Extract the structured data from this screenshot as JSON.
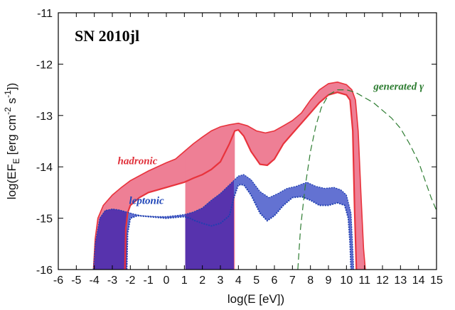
{
  "chart_data": {
    "type": "area",
    "title": "SN 2010jl",
    "xlabel": "log(E [eV])",
    "ylabel_main": "log(EF",
    "ylabel_sub": "E",
    "ylabel_rest": " [erg cm",
    "ylabel_exp1": "-2",
    "ylabel_mid": " s",
    "ylabel_exp2": "-1",
    "ylabel_end": "])",
    "xlim": [
      -6,
      15
    ],
    "ylim": [
      -16,
      -11
    ],
    "x_ticks": [
      -6,
      -5,
      -4,
      -3,
      -2,
      -1,
      0,
      1,
      2,
      3,
      4,
      5,
      6,
      7,
      8,
      9,
      10,
      11,
      12,
      13,
      14,
      15
    ],
    "y_ticks": [
      -16,
      -15,
      -14,
      -13,
      -12,
      -11
    ],
    "colors": {
      "hadronic_fill": "#ee7f95",
      "hadronic_line": "#e8333c",
      "leptonic_fill": "#6372d2",
      "leptonic_fill_dark": "#5733ad",
      "leptonic_line": "#1f3fb0",
      "generated_line": "#2e7d32",
      "hadronic_label": "#e0303a",
      "leptonic_label": "#1f45b8",
      "generated_label": "#2e7d32"
    },
    "series": [
      {
        "name": "hadronic",
        "upper": [
          [
            -4.05,
            -16
          ],
          [
            -3.95,
            -15.4
          ],
          [
            -3.8,
            -15.0
          ],
          [
            -3.5,
            -14.75
          ],
          [
            -3,
            -14.55
          ],
          [
            -2.5,
            -14.4
          ],
          [
            -2,
            -14.27
          ],
          [
            -1,
            -14.08
          ],
          [
            0,
            -13.92
          ],
          [
            0.5,
            -13.85
          ],
          [
            1,
            -13.7
          ],
          [
            1.5,
            -13.55
          ],
          [
            2,
            -13.42
          ],
          [
            2.5,
            -13.3
          ],
          [
            3,
            -13.22
          ],
          [
            3.5,
            -13.18
          ],
          [
            4,
            -13.15
          ],
          [
            4.5,
            -13.2
          ],
          [
            5,
            -13.3
          ],
          [
            5.5,
            -13.34
          ],
          [
            6,
            -13.3
          ],
          [
            6.5,
            -13.2
          ],
          [
            7,
            -13.1
          ],
          [
            7.5,
            -12.95
          ],
          [
            8,
            -12.7
          ],
          [
            8.5,
            -12.5
          ],
          [
            9,
            -12.38
          ],
          [
            9.5,
            -12.35
          ],
          [
            10,
            -12.4
          ],
          [
            10.3,
            -12.5
          ],
          [
            10.5,
            -12.7
          ],
          [
            10.65,
            -13.3
          ],
          [
            10.8,
            -14.5
          ],
          [
            10.95,
            -15.6
          ],
          [
            11.05,
            -16
          ]
        ],
        "lower": [
          [
            -2.3,
            -16
          ],
          [
            -2.25,
            -15.2
          ],
          [
            -2.15,
            -14.9
          ],
          [
            -2,
            -14.75
          ],
          [
            -1.5,
            -14.6
          ],
          [
            -1,
            -14.5
          ],
          [
            0,
            -14.4
          ],
          [
            1,
            -14.3
          ],
          [
            1.5,
            -14.22
          ],
          [
            2,
            -14.15
          ],
          [
            2.5,
            -14.05
          ],
          [
            3,
            -13.9
          ],
          [
            3.5,
            -13.55
          ],
          [
            3.8,
            -13.3
          ],
          [
            4,
            -13.28
          ],
          [
            4.3,
            -13.4
          ],
          [
            4.7,
            -13.7
          ],
          [
            5.2,
            -13.95
          ],
          [
            5.6,
            -13.97
          ],
          [
            6,
            -13.85
          ],
          [
            6.5,
            -13.55
          ],
          [
            7,
            -13.35
          ],
          [
            7.5,
            -13.15
          ],
          [
            8,
            -12.95
          ],
          [
            8.5,
            -12.75
          ],
          [
            9,
            -12.6
          ],
          [
            9.5,
            -12.55
          ],
          [
            10,
            -12.6
          ],
          [
            10.2,
            -12.7
          ],
          [
            10.35,
            -13.3
          ],
          [
            10.45,
            -14.8
          ],
          [
            10.55,
            -16
          ]
        ],
        "bands": [
          {
            "x": [
              -4.05,
              -2.3
            ],
            "fill": "full"
          },
          {
            "x": [
              1.05,
              3.8
            ],
            "fill": "full"
          }
        ]
      },
      {
        "name": "leptonic",
        "upper": [
          [
            -4.05,
            -16
          ],
          [
            -3.95,
            -15.5
          ],
          [
            -3.7,
            -15.0
          ],
          [
            -3.4,
            -14.85
          ],
          [
            -3,
            -14.82
          ],
          [
            -2.6,
            -14.84
          ],
          [
            -2.2,
            -14.88
          ],
          [
            -1.8,
            -14.92
          ],
          [
            -1.4,
            -14.95
          ],
          [
            -1,
            -14.96
          ],
          [
            -0.5,
            -14.97
          ],
          [
            0,
            -14.97
          ],
          [
            0.5,
            -14.95
          ],
          [
            1,
            -14.93
          ],
          [
            1.5,
            -14.88
          ],
          [
            2,
            -14.8
          ],
          [
            2.5,
            -14.65
          ],
          [
            3,
            -14.52
          ],
          [
            3.5,
            -14.35
          ],
          [
            4,
            -14.18
          ],
          [
            4.3,
            -14.15
          ],
          [
            4.7,
            -14.25
          ],
          [
            5.2,
            -14.48
          ],
          [
            5.7,
            -14.6
          ],
          [
            6.2,
            -14.52
          ],
          [
            6.7,
            -14.42
          ],
          [
            7.2,
            -14.38
          ],
          [
            7.8,
            -14.3
          ],
          [
            8.3,
            -14.38
          ],
          [
            8.8,
            -14.42
          ],
          [
            9.3,
            -14.4
          ],
          [
            9.7,
            -14.45
          ],
          [
            10,
            -14.55
          ],
          [
            10.25,
            -14.9
          ],
          [
            10.35,
            -15.6
          ],
          [
            10.4,
            -16
          ]
        ],
        "lower": [
          [
            -2.2,
            -16
          ],
          [
            -2.15,
            -15.3
          ],
          [
            -2.0,
            -15.0
          ],
          [
            -1.6,
            -14.95
          ],
          [
            -1,
            -14.97
          ],
          [
            0,
            -15.0
          ],
          [
            1,
            -14.97
          ],
          [
            1.3,
            -15.0
          ],
          [
            1.6,
            -15.05
          ],
          [
            2,
            -15.1
          ],
          [
            2.5,
            -15.15
          ],
          [
            3,
            -15.1
          ],
          [
            3.5,
            -14.95
          ],
          [
            3.75,
            -14.6
          ],
          [
            4.0,
            -14.35
          ],
          [
            4.3,
            -14.35
          ],
          [
            4.7,
            -14.55
          ],
          [
            5.2,
            -14.9
          ],
          [
            5.6,
            -15.05
          ],
          [
            6.0,
            -14.95
          ],
          [
            6.5,
            -14.75
          ],
          [
            7,
            -14.6
          ],
          [
            7.5,
            -14.58
          ],
          [
            8,
            -14.65
          ],
          [
            8.5,
            -14.75
          ],
          [
            9,
            -14.75
          ],
          [
            9.5,
            -14.7
          ],
          [
            9.9,
            -14.75
          ],
          [
            10.1,
            -15.0
          ],
          [
            10.2,
            -15.5
          ],
          [
            10.25,
            -16
          ]
        ],
        "bands": [
          {
            "x": [
              -4.05,
              -2.2
            ],
            "fill": "full"
          },
          {
            "x": [
              1.05,
              3.75
            ],
            "fill": "full"
          }
        ]
      },
      {
        "name": "generated γ",
        "points": [
          [
            7.3,
            -16
          ],
          [
            7.45,
            -15.2
          ],
          [
            7.7,
            -14.4
          ],
          [
            8.0,
            -13.7
          ],
          [
            8.3,
            -13.2
          ],
          [
            8.6,
            -12.85
          ],
          [
            9.0,
            -12.6
          ],
          [
            9.5,
            -12.5
          ],
          [
            10.0,
            -12.5
          ],
          [
            10.5,
            -12.55
          ],
          [
            11.0,
            -12.65
          ],
          [
            11.5,
            -12.75
          ],
          [
            12.0,
            -12.9
          ],
          [
            12.5,
            -13.05
          ],
          [
            13.0,
            -13.25
          ],
          [
            13.5,
            -13.55
          ],
          [
            14.0,
            -13.9
          ],
          [
            14.4,
            -14.3
          ],
          [
            14.7,
            -14.6
          ],
          [
            15.0,
            -14.85
          ]
        ]
      }
    ],
    "labels": [
      {
        "text": "hadronic",
        "x": -1.6,
        "y": -13.95,
        "color_key": "hadronic_label"
      },
      {
        "text": "leptonic",
        "x": -1.1,
        "y": -14.72,
        "color_key": "leptonic_label"
      },
      {
        "text": "generated γ",
        "x": 12.9,
        "y": -12.5,
        "color_key": "generated_label"
      }
    ]
  }
}
